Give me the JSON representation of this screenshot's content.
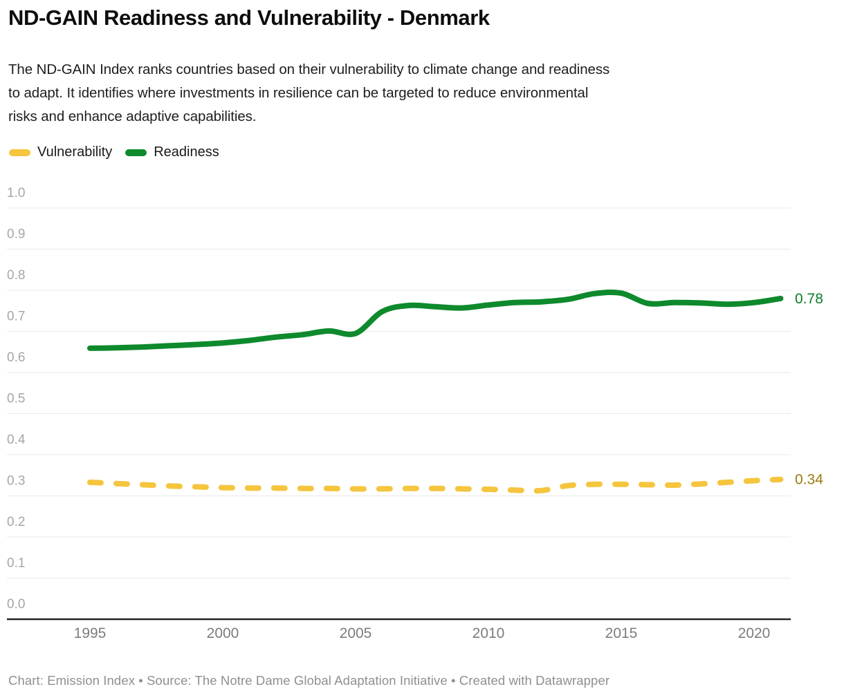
{
  "header": {
    "title": "ND-GAIN Readiness and Vulnerability - Denmark",
    "description_lines": [
      "The ND-GAIN Index ranks countries based on their vulnerability to climate change and readiness",
      "to adapt. It identifies where investments in resilience can be targeted to reduce environmental",
      "risks and enhance adaptive capabilities."
    ]
  },
  "footer": {
    "credit": "Chart: Emission Index • Source: The Notre Dame Global Adaptation Initiative • Created with Datawrapper"
  },
  "chart_data": {
    "type": "line",
    "title": "ND-GAIN Readiness and Vulnerability - Denmark",
    "xlabel": "",
    "ylabel": "",
    "ylim": [
      0.0,
      1.0
    ],
    "y_tick_step": 0.1,
    "y_ticks": [
      0.0,
      0.1,
      0.2,
      0.3,
      0.4,
      0.5,
      0.6,
      0.7,
      0.8,
      0.9,
      1.0
    ],
    "x_ticks": [
      1995,
      2000,
      2005,
      2010,
      2015,
      2020
    ],
    "grid": "horizontal",
    "legend_position": "top-left",
    "x": [
      1995,
      1996,
      1997,
      1998,
      1999,
      2000,
      2001,
      2002,
      2003,
      2004,
      2005,
      2006,
      2007,
      2008,
      2009,
      2010,
      2011,
      2012,
      2013,
      2014,
      2015,
      2016,
      2017,
      2018,
      2019,
      2020,
      2021
    ],
    "series": [
      {
        "name": "Vulnerability",
        "style": "dashed",
        "color": "#F5C53E",
        "end_label": "0.34",
        "end_label_color": "#9A7B10",
        "values": [
          0.333,
          0.33,
          0.327,
          0.324,
          0.322,
          0.32,
          0.319,
          0.319,
          0.318,
          0.318,
          0.317,
          0.317,
          0.318,
          0.318,
          0.317,
          0.316,
          0.314,
          0.313,
          0.325,
          0.328,
          0.328,
          0.327,
          0.326,
          0.329,
          0.333,
          0.337,
          0.34
        ]
      },
      {
        "name": "Readiness",
        "style": "solid",
        "color": "#0E8A2D",
        "end_label": "0.78",
        "end_label_color": "#0C7D28",
        "values": [
          0.659,
          0.66,
          0.662,
          0.665,
          0.668,
          0.672,
          0.678,
          0.686,
          0.692,
          0.701,
          0.695,
          0.748,
          0.763,
          0.76,
          0.757,
          0.764,
          0.77,
          0.772,
          0.778,
          0.792,
          0.793,
          0.768,
          0.77,
          0.769,
          0.766,
          0.77,
          0.78
        ]
      }
    ],
    "colors": {
      "gridline": "#e9e9e9",
      "axis_line": "#222222",
      "y_tick_label": "#a6a6a6",
      "x_tick_label": "#7c7c7c"
    }
  }
}
